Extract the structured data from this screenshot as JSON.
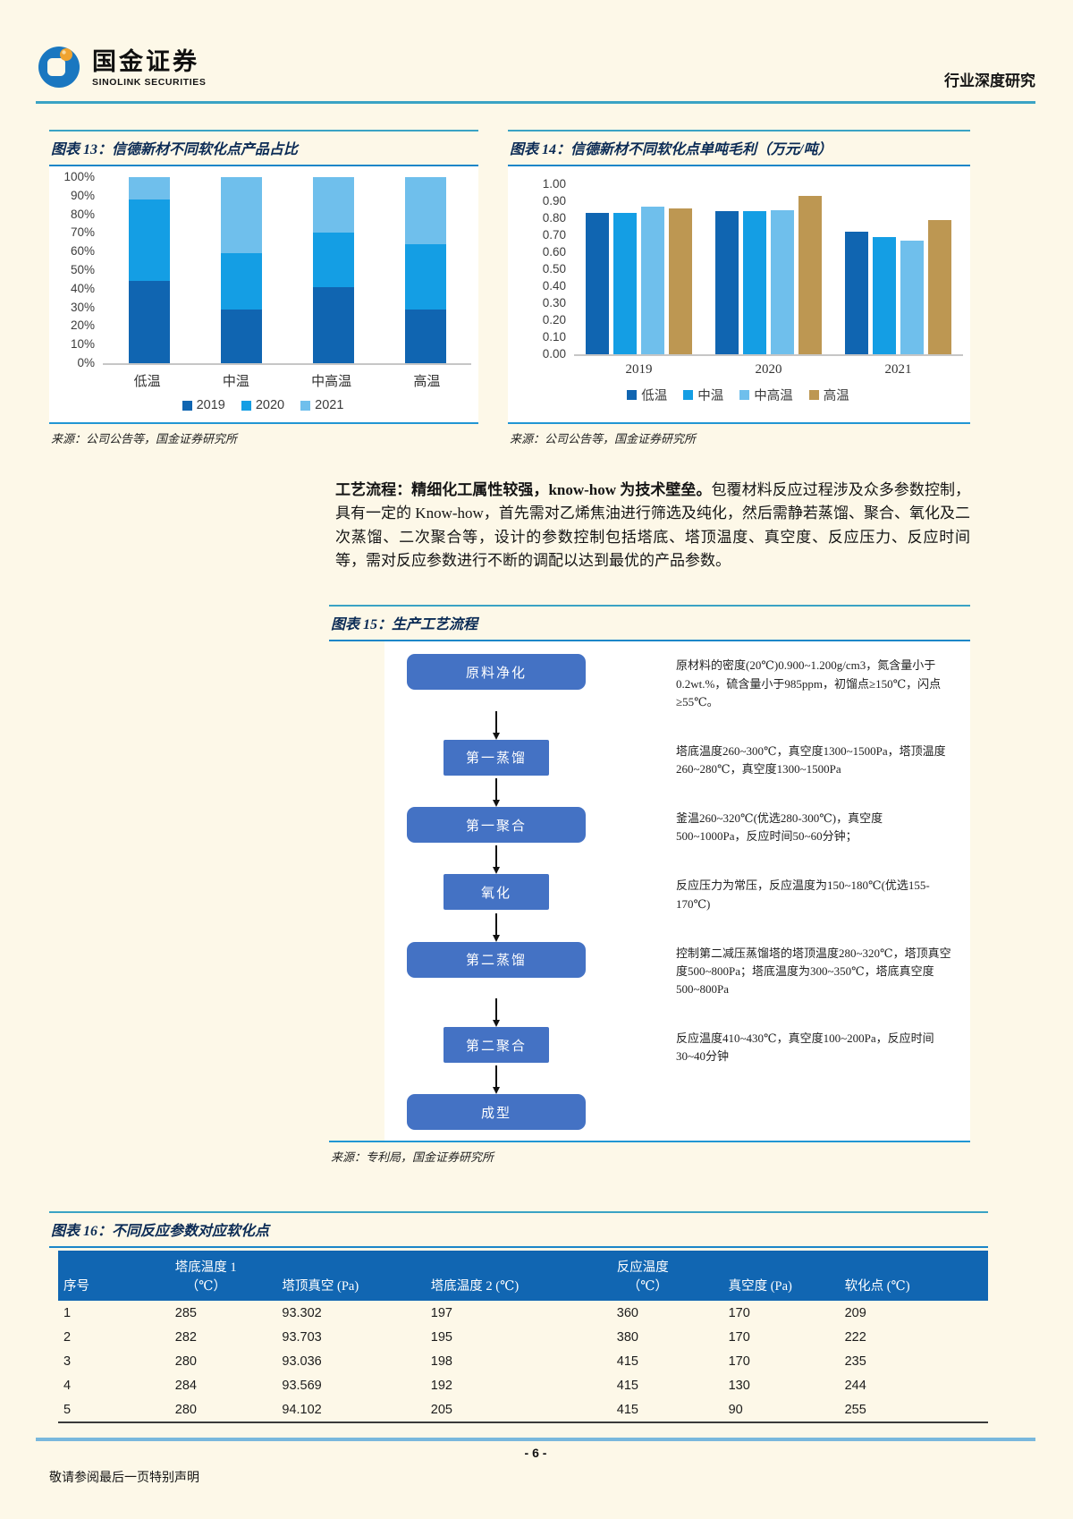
{
  "header": {
    "brand_cn": "国金证券",
    "brand_en": "SINOLINK SECURITIES",
    "right_label": "行业深度研究"
  },
  "fig13": {
    "title": "图表 13：信德新材不同软化点产品占比",
    "source": "来源：公司公告等，国金证券研究所"
  },
  "fig14": {
    "title": "图表 14：信德新材不同软化点单吨毛利（万元/吨）",
    "source": "来源：公司公告等，国金证券研究所"
  },
  "chart_data": [
    {
      "id": "fig13",
      "type": "bar",
      "stacked": true,
      "percent": true,
      "title": "图表 13：信德新材不同软化点产品占比",
      "categories": [
        "低温",
        "中温",
        "中高温",
        "高温"
      ],
      "series": [
        {
          "name": "2019",
          "color": "#1065b1",
          "values": [
            44,
            29,
            41,
            29
          ]
        },
        {
          "name": "2020",
          "color": "#149ee4",
          "values": [
            44,
            30,
            29,
            35
          ]
        },
        {
          "name": "2021",
          "color": "#6fbfec",
          "values": [
            12,
            41,
            30,
            36
          ]
        }
      ],
      "ylim": [
        0,
        100
      ],
      "yticks": [
        "100%",
        "90%",
        "80%",
        "70%",
        "60%",
        "50%",
        "40%",
        "30%",
        "20%",
        "10%",
        "0%"
      ],
      "grid": false,
      "legend_position": "bottom"
    },
    {
      "id": "fig14",
      "type": "bar",
      "stacked": false,
      "title": "图表 14：信德新材不同软化点单吨毛利（万元/吨）",
      "categories": [
        "2019",
        "2020",
        "2021"
      ],
      "series": [
        {
          "name": "低温",
          "color": "#1065b1",
          "values": [
            0.83,
            0.84,
            0.72
          ]
        },
        {
          "name": "中温",
          "color": "#149ee4",
          "values": [
            0.83,
            0.84,
            0.69
          ]
        },
        {
          "name": "中高温",
          "color": "#6fbfec",
          "values": [
            0.87,
            0.85,
            0.67
          ]
        },
        {
          "name": "高温",
          "color": "#bd9752",
          "values": [
            0.86,
            0.93,
            0.79
          ]
        }
      ],
      "ylim": [
        0,
        1.0
      ],
      "yticks": [
        "1.00",
        "0.90",
        "0.80",
        "0.70",
        "0.60",
        "0.50",
        "0.40",
        "0.30",
        "0.20",
        "0.10",
        "0.00"
      ],
      "grid": false,
      "legend_position": "bottom"
    }
  ],
  "paragraph": {
    "lead_bold": "工艺流程：精细化工属性较强，know-how 为技术壁垒。",
    "body": "包覆材料反应过程涉及众多参数控制，具有一定的 Know-how，首先需对乙烯焦油进行筛选及纯化，然后需静若蒸馏、聚合、氧化及二次蒸馏、二次聚合等，设计的参数控制包括塔底、塔顶温度、真空度、反应压力、反应时间等，需对反应参数进行不断的调配以达到最优的产品参数。"
  },
  "fig15": {
    "title": "图表 15：生产工艺流程",
    "source": "来源：专利局，国金证券研究所",
    "steps": [
      {
        "label": "原料净化",
        "shape": "rounded",
        "size": "wide",
        "note": "原材料的密度(20℃)0.900~1.200g/cm3，氮含量小于0.2wt.%，硫含量小于985ppm，初馏点≥150℃，闪点≥55℃。"
      },
      {
        "label": "第一蒸馏",
        "shape": "square",
        "size": "narrow",
        "note": "塔底温度260~300℃，真空度1300~1500Pa，塔顶温度260~280℃，真空度1300~1500Pa"
      },
      {
        "label": "第一聚合",
        "shape": "rounded",
        "size": "wide",
        "note": "釜温260~320℃(优选280-300℃)，真空度500~1000Pa，反应时间50~60分钟；"
      },
      {
        "label": "氧化",
        "shape": "square",
        "size": "narrow",
        "note": "反应压力为常压，反应温度为150~180℃(优选155-170℃)"
      },
      {
        "label": "第二蒸馏",
        "shape": "rounded",
        "size": "wide",
        "note": "控制第二减压蒸馏塔的塔顶温度280~320℃，塔顶真空度500~800Pa；塔底温度为300~350℃，塔底真空度500~800Pa"
      },
      {
        "label": "第二聚合",
        "shape": "square",
        "size": "narrow",
        "note": "反应温度410~430℃，真空度100~200Pa，反应时间30~40分钟"
      },
      {
        "label": "成型",
        "shape": "rounded",
        "size": "wide",
        "note": ""
      }
    ]
  },
  "fig16": {
    "title": "图表 16：不同反应参数对应软化点",
    "headers": [
      {
        "line1": "",
        "line2": "序号"
      },
      {
        "line1": "塔底温度 1",
        "line2": "（℃）"
      },
      {
        "line1": "",
        "line2": "塔顶真空 (Pa)"
      },
      {
        "line1": "",
        "line2": "塔底温度 2 (℃)"
      },
      {
        "line1": "反应温度",
        "line2": "（℃）"
      },
      {
        "line1": "",
        "line2": "真空度 (Pa)"
      },
      {
        "line1": "",
        "line2": "软化点 (℃)"
      }
    ],
    "col_widths": [
      "12%",
      "11.5%",
      "16%",
      "20%",
      "12%",
      "12.5%",
      "16%"
    ],
    "rows": [
      [
        "1",
        "285",
        "93.302",
        "197",
        "360",
        "170",
        "209"
      ],
      [
        "2",
        "282",
        "93.703",
        "195",
        "380",
        "170",
        "222"
      ],
      [
        "3",
        "280",
        "93.036",
        "198",
        "415",
        "170",
        "235"
      ],
      [
        "4",
        "284",
        "93.569",
        "192",
        "415",
        "130",
        "244"
      ],
      [
        "5",
        "280",
        "94.102",
        "205",
        "415",
        "90",
        "255"
      ]
    ]
  },
  "footer": {
    "page_number": "- 6 -",
    "disclaimer": "敬请参阅最后一页特别声明"
  }
}
